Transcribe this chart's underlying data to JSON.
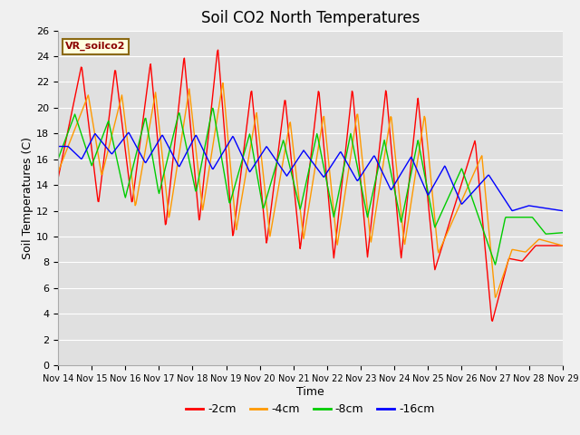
{
  "title": "Soil CO2 North Temperatures",
  "xlabel": "Time",
  "ylabel": "Soil Temperatures (C)",
  "legend_label": "VR_soilco2",
  "series_labels": [
    "-2cm",
    "-4cm",
    "-8cm",
    "-16cm"
  ],
  "series_colors": [
    "#ff0000",
    "#ff9900",
    "#00cc00",
    "#0000ff"
  ],
  "ylim": [
    0,
    26
  ],
  "xlim": [
    0,
    15
  ],
  "xtick_labels": [
    "Nov 14",
    "Nov 15",
    "Nov 16",
    "Nov 17",
    "Nov 18",
    "Nov 19",
    "Nov 20",
    "Nov 21",
    "Nov 22",
    "Nov 23",
    "Nov 24",
    "Nov 25",
    "Nov 26",
    "Nov 27",
    "Nov 28",
    "Nov 29"
  ],
  "background_color": "#f0f0f0",
  "plot_bg_color": "#e0e0e0",
  "title_fontsize": 12,
  "axis_label_fontsize": 9,
  "tick_fontsize": 8
}
